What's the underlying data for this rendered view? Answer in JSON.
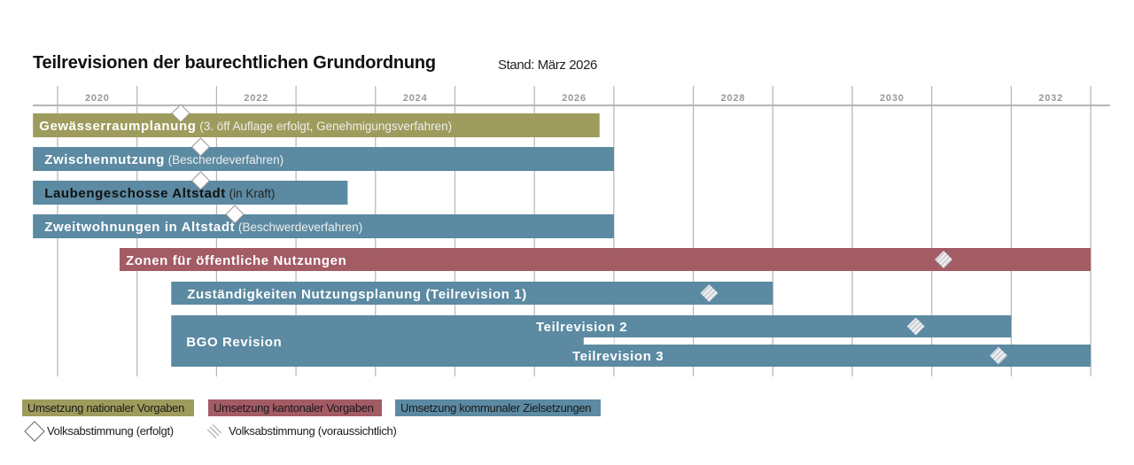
{
  "chart_data": {
    "type": "gantt",
    "title": "Teilrevisionen der baurechtlichen Grundordnung",
    "subtitle": "Stand: März 2026",
    "x_axis": {
      "range": [
        2019.7,
        2033.25
      ],
      "tick_labels": [
        "2020",
        "2022",
        "2024",
        "2026",
        "2028",
        "2030",
        "2032"
      ],
      "grid": true
    },
    "colors": {
      "national": "#9e9c5c",
      "kantonal": "#a35b64",
      "kommunal": "#5b8aa2"
    },
    "bars": [
      {
        "label": "Gewässerraumplanung",
        "note": "(3. öff Auflage erfolgt, Genehmigungsverfahren)",
        "category": "national",
        "start": 2019.69,
        "end": 2026.82,
        "vote_done": 2021.55
      },
      {
        "label": "Zwischennutzung",
        "note": "(Bescherdeverfahren)",
        "category": "kommunal",
        "start": 2019.69,
        "end": 2027.0,
        "vote_done": 2021.8
      },
      {
        "label": "Laubengeschosse Altstadt",
        "note": "(in Kraft)",
        "category": "kommunal",
        "start": 2019.69,
        "end": 2023.65,
        "vote_done": 2021.8,
        "dark_text": true
      },
      {
        "label": "Zweitwohnungen in Altstadt",
        "note": "(Beschwerdeverfahren)",
        "category": "kommunal",
        "start": 2019.69,
        "end": 2027.0,
        "vote_done": 2022.23
      },
      {
        "label": "Zonen für öffentliche Nutzungen",
        "note": "",
        "category": "kantonal",
        "start": 2020.78,
        "end": 2033.0,
        "vote_planned": 2031.15
      },
      {
        "label": "Zuständigkeiten Nutzungsplanung (Teilrevision 1)",
        "note": "",
        "category": "kommunal",
        "start": 2021.43,
        "end": 2029.0,
        "vote_planned": 2028.2
      }
    ],
    "bgo": {
      "label": "BGO Revision",
      "category": "kommunal",
      "start": 2021.43,
      "end": 2027.0,
      "parts": [
        {
          "label": "Teilrevision 2",
          "start": 2026.62,
          "end": 2032.0,
          "vote_planned": 2030.8
        },
        {
          "label": "Teilrevision 3",
          "start": 2026.62,
          "end": 2033.0,
          "vote_planned": 2031.84
        }
      ]
    },
    "legend": {
      "categories": [
        {
          "key": "national",
          "label": "Umsetzung nationaler Vorgaben"
        },
        {
          "key": "kantonal",
          "label": "Umsetzung kantonaler Vorgaben"
        },
        {
          "key": "kommunal",
          "label": "Umsetzung kommunaler Zielsetzungen"
        }
      ],
      "markers": [
        {
          "icon": "diamond-outline",
          "label": "Volksabstimmung (erfolgt)"
        },
        {
          "icon": "diamond-hatched",
          "label": "Volksabstimmung (voraussichtlich)"
        }
      ]
    }
  }
}
